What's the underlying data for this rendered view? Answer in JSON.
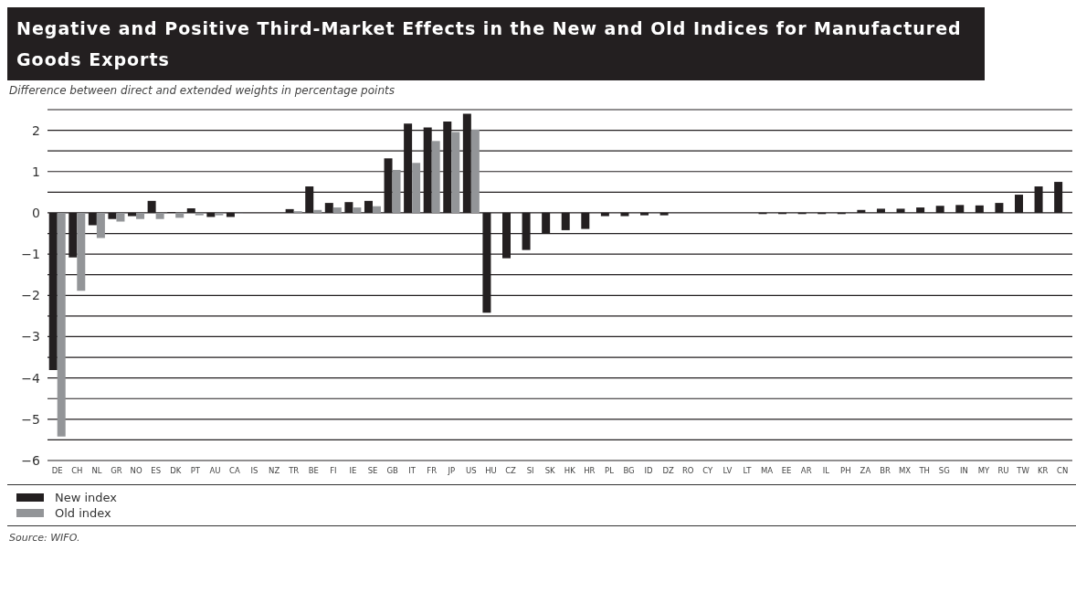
{
  "chart_data": {
    "type": "bar",
    "title": "Negative and Positive Third-Market Effects in the New and Old Indices for Manufactured Goods Exports",
    "subtitle": "Difference between direct and extended weights in percentage points",
    "categories": [
      "DE",
      "CH",
      "NL",
      "GR",
      "NO",
      "ES",
      "DK",
      "PT",
      "AU",
      "CA",
      "IS",
      "NZ",
      "TR",
      "BE",
      "FI",
      "IE",
      "SE",
      "GB",
      "IT",
      "FR",
      "JP",
      "US",
      "HU",
      "CZ",
      "SI",
      "SK",
      "HK",
      "HR",
      "PL",
      "BG",
      "ID",
      "DZ",
      "RO",
      "CY",
      "LV",
      "LT",
      "MA",
      "EE",
      "AR",
      "IL",
      "PH",
      "ZA",
      "BR",
      "MX",
      "TH",
      "SG",
      "IN",
      "MY",
      "RU",
      "TW",
      "KR",
      "CN"
    ],
    "series": [
      {
        "name": "New index",
        "color": "#231f20",
        "values": [
          -3.81,
          -1.08,
          -0.3,
          -0.15,
          -0.08,
          0.29,
          0.02,
          0.11,
          -0.1,
          -0.1,
          0,
          0,
          0.09,
          0.64,
          0.24,
          0.26,
          0.29,
          1.32,
          2.16,
          2.07,
          2.21,
          2.4,
          -2.42,
          -1.1,
          -0.9,
          -0.49,
          -0.42,
          -0.39,
          -0.08,
          -0.08,
          -0.06,
          -0.06,
          0,
          0,
          0,
          0,
          -0.03,
          -0.03,
          -0.03,
          -0.03,
          -0.03,
          0.07,
          0.1,
          0.1,
          0.13,
          0.17,
          0.19,
          0.18,
          0.24,
          0.44,
          0.64,
          0.75
        ]
      },
      {
        "name": "Old index",
        "color": "#939598",
        "values": [
          -5.42,
          -1.89,
          -0.61,
          -0.21,
          -0.15,
          -0.15,
          -0.12,
          -0.06,
          -0.06,
          -0.02,
          0,
          0,
          0.04,
          0.07,
          0.13,
          0.13,
          0.16,
          1.04,
          1.21,
          1.74,
          1.96,
          2.02,
          null,
          null,
          null,
          null,
          null,
          null,
          null,
          null,
          null,
          null,
          null,
          null,
          null,
          null,
          null,
          null,
          null,
          null,
          null,
          null,
          null,
          null,
          null,
          null,
          null,
          null,
          null,
          null,
          null,
          null
        ]
      }
    ],
    "ylim": [
      -6,
      2.5
    ],
    "yticks": [
      {
        "value": -6,
        "label": "−6"
      },
      {
        "value": -5.5,
        "label": null
      },
      {
        "value": -5,
        "label": "−5"
      },
      {
        "value": -4.5,
        "label": null
      },
      {
        "value": -4,
        "label": "−4"
      },
      {
        "value": -3.5,
        "label": null
      },
      {
        "value": -3,
        "label": "−3"
      },
      {
        "value": -2.5,
        "label": null
      },
      {
        "value": -2,
        "label": "−2"
      },
      {
        "value": -1.5,
        "label": null
      },
      {
        "value": -1,
        "label": "−1"
      },
      {
        "value": -0.5,
        "label": null
      },
      0,
      {
        "value": 0.5,
        "label": null
      },
      1,
      {
        "value": 1.5,
        "label": null
      },
      2,
      {
        "value": 2.5,
        "label": null
      }
    ],
    "grid": "y",
    "legend": "bottom left",
    "annotations": [
      "Source: WIFO."
    ]
  }
}
